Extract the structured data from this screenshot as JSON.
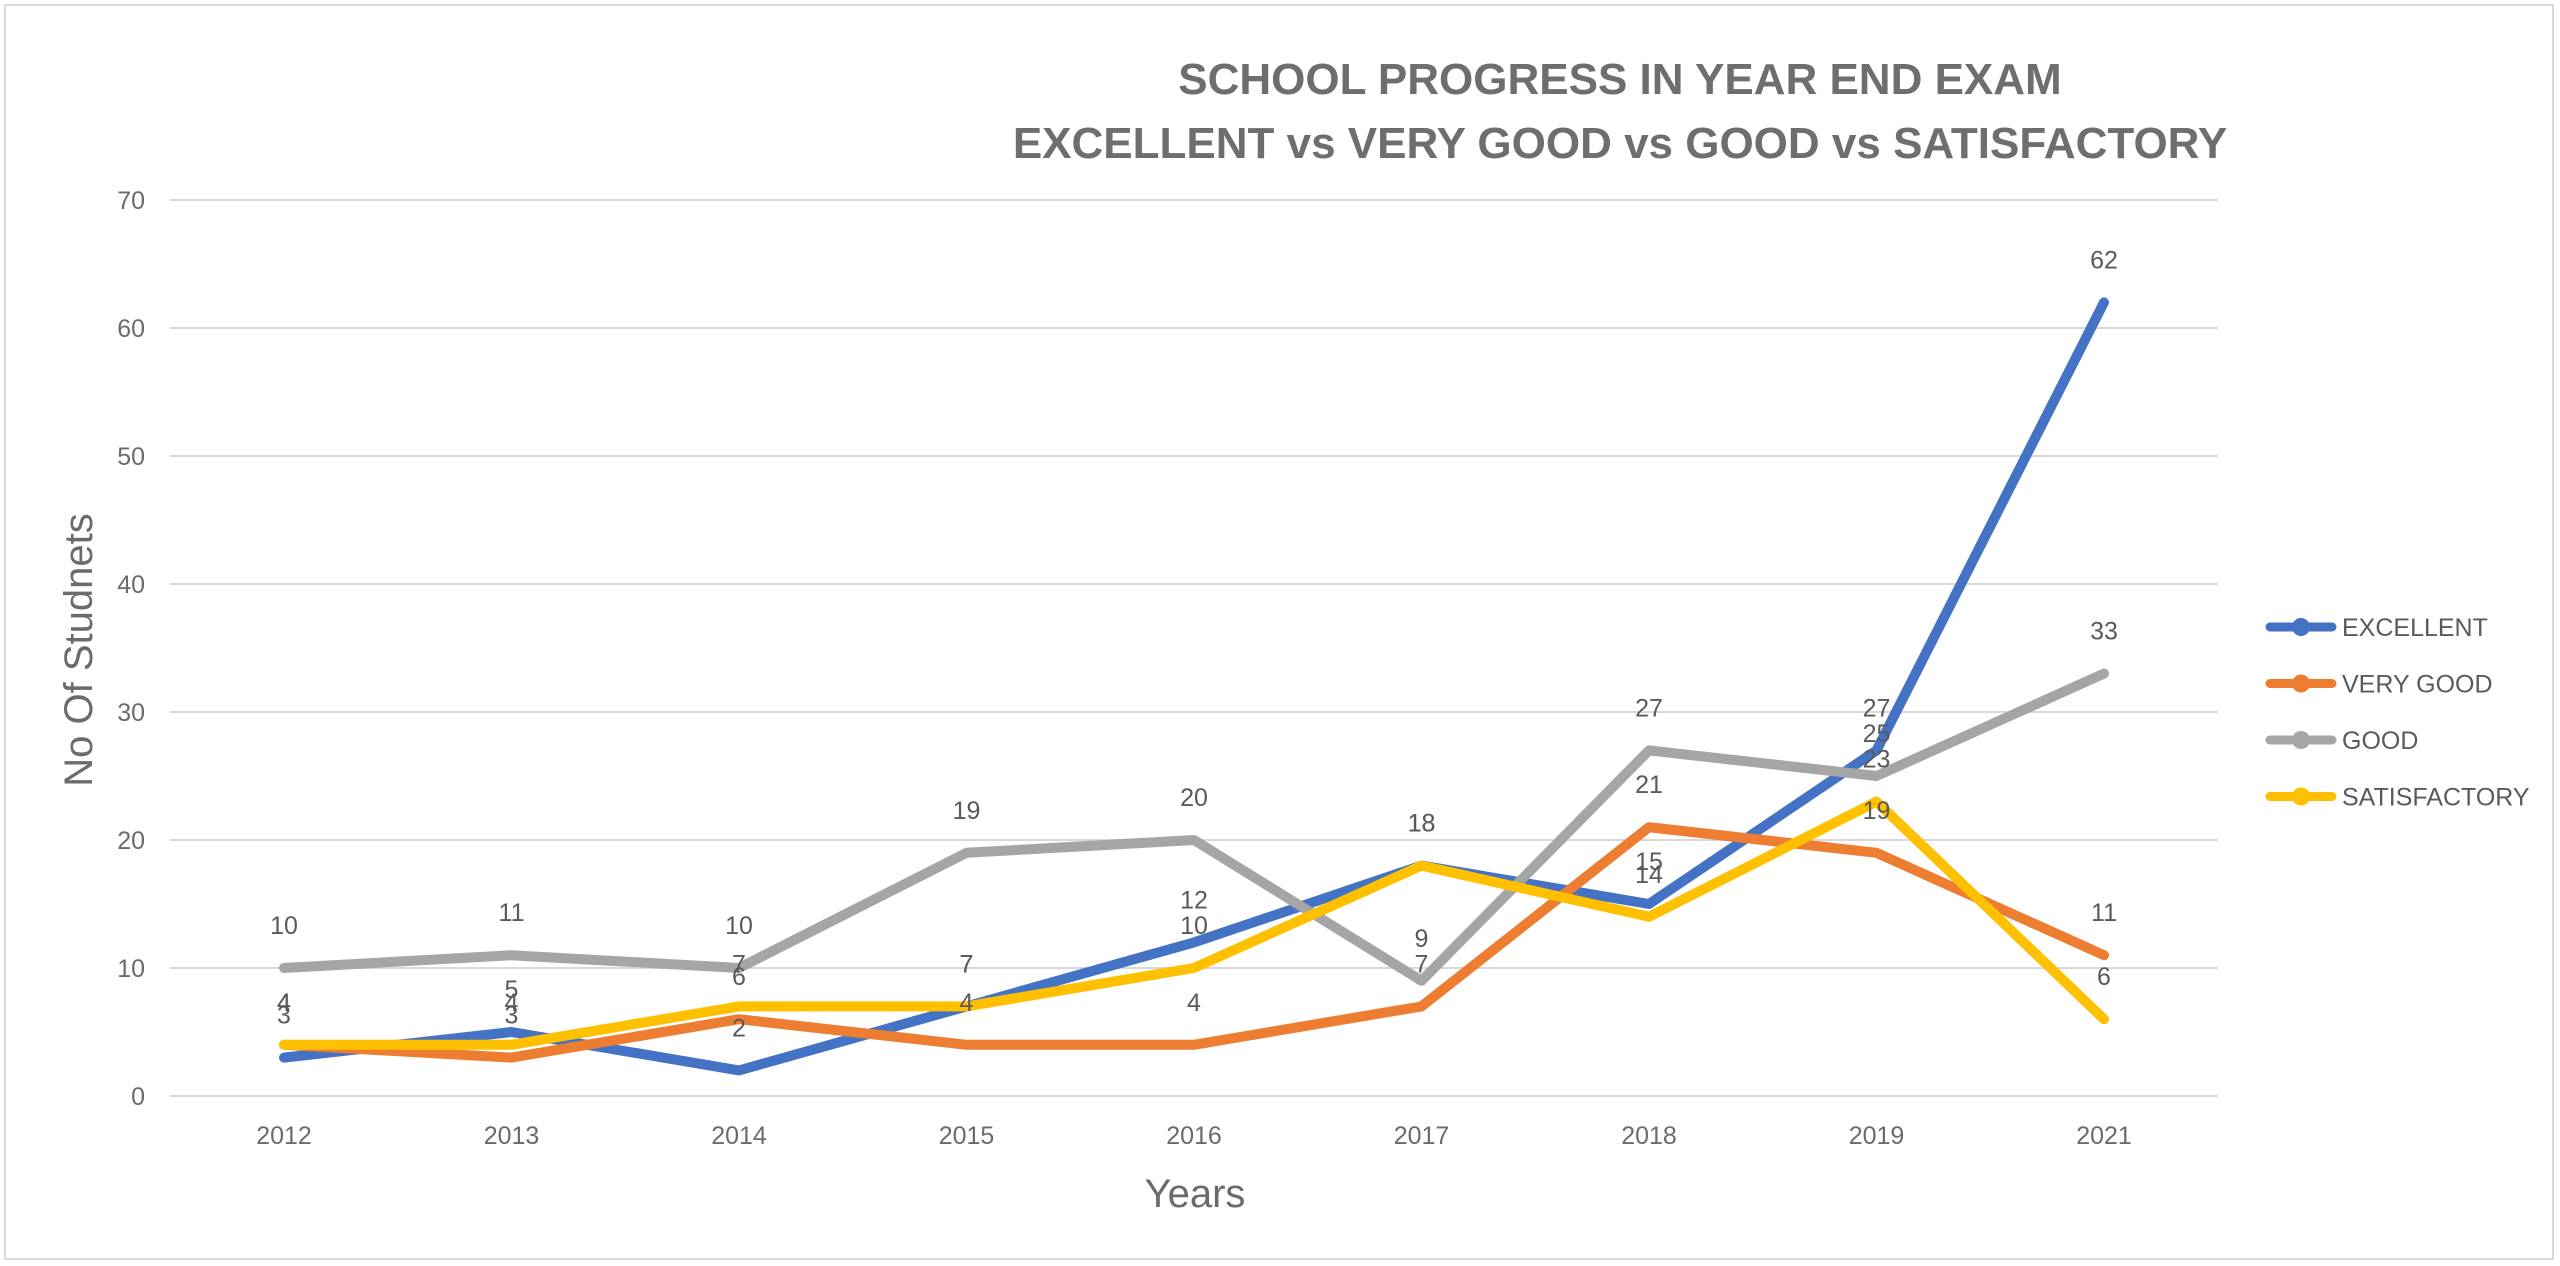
{
  "chart_data": {
    "type": "line",
    "title_lines": [
      "SCHOOL PROGRESS IN YEAR END EXAM",
      "EXCELLENT vs VERY GOOD vs GOOD vs SATISFACTORY"
    ],
    "xlabel": "Years",
    "ylabel": "No Of Studnets",
    "categories": [
      "2012",
      "2013",
      "2014",
      "2015",
      "2016",
      "2017",
      "2018",
      "2019",
      "2021"
    ],
    "ylim": [
      0,
      70
    ],
    "yticks": [
      0,
      10,
      20,
      30,
      40,
      50,
      60,
      70
    ],
    "grid": true,
    "legend_position": "right",
    "series": [
      {
        "name": "EXCELLENT",
        "color": "#4472C4",
        "values": [
          3,
          5,
          2,
          7,
          12,
          18,
          15,
          27,
          62
        ]
      },
      {
        "name": "VERY GOOD",
        "color": "#ED7D31",
        "values": [
          4,
          3,
          6,
          4,
          4,
          7,
          21,
          19,
          11
        ]
      },
      {
        "name": "GOOD",
        "color": "#A5A5A5",
        "values": [
          10,
          11,
          10,
          19,
          20,
          9,
          27,
          25,
          33
        ]
      },
      {
        "name": "SATISFACTORY",
        "color": "#FFC000",
        "values": [
          4,
          4,
          7,
          7,
          10,
          18,
          14,
          23,
          6
        ]
      }
    ]
  }
}
